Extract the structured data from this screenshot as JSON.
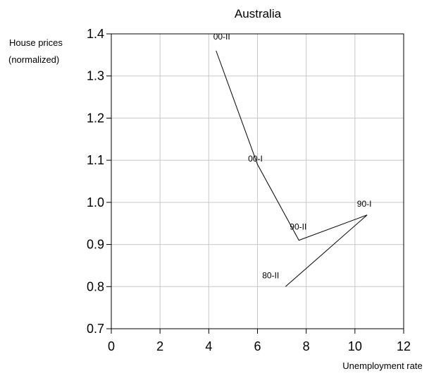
{
  "chart_data": {
    "type": "line",
    "title": "Australia",
    "xlabel": "Unemployment rate",
    "ylabel_lines": [
      "House prices",
      "(normalized)"
    ],
    "xlim": [
      0,
      12
    ],
    "ylim": [
      0.7,
      1.4
    ],
    "x_ticks": [
      0,
      2,
      4,
      6,
      8,
      10,
      12
    ],
    "y_ticks": [
      0.7,
      0.8,
      0.9,
      1.0,
      1.1,
      1.2,
      1.3,
      1.4
    ],
    "x_tick_labels": [
      "0",
      "2",
      "4",
      "6",
      "8",
      "10",
      "12"
    ],
    "y_tick_labels": [
      "0.7",
      "0.8",
      "0.9",
      "1.0",
      "1.1",
      "1.2",
      "1.3",
      "1.4"
    ],
    "grid": true,
    "series": [
      {
        "points": [
          {
            "x": 7.15,
            "y": 0.8
          },
          {
            "x": 10.5,
            "y": 0.97
          },
          {
            "x": 7.7,
            "y": 0.91
          },
          {
            "x": 6.0,
            "y": 1.09
          },
          {
            "x": 4.3,
            "y": 1.36
          }
        ],
        "labels": [
          {
            "text": "80-II",
            "x": 7.15,
            "y": 0.8
          },
          {
            "text": "90-I",
            "x": 10.5,
            "y": 0.97
          },
          {
            "text": "90-II",
            "x": 7.7,
            "y": 0.91
          },
          {
            "text": "00-I",
            "x": 6.0,
            "y": 1.09
          },
          {
            "text": "00-II",
            "x": 4.3,
            "y": 1.36
          }
        ],
        "color": "#000000"
      }
    ]
  }
}
